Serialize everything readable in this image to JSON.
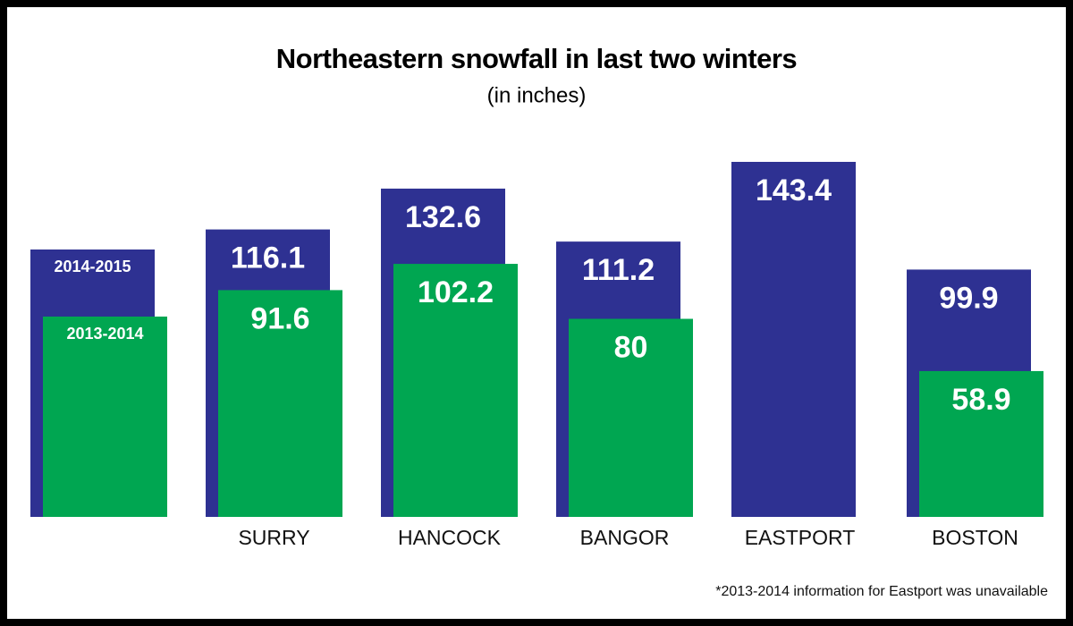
{
  "chart_data": {
    "type": "bar",
    "title": "Northeastern snowfall in last two winters",
    "subtitle": "(in inches)",
    "categories": [
      "SURRY",
      "HANCOCK",
      "BANGOR",
      "EASTPORT",
      "BOSTON"
    ],
    "series": [
      {
        "name": "2014-2015",
        "color": "#2e3192",
        "values": [
          116.1,
          132.6,
          111.2,
          143.4,
          99.9
        ]
      },
      {
        "name": "2013-2014",
        "color": "#00a651",
        "values": [
          91.6,
          102.2,
          80,
          null,
          58.9
        ]
      }
    ],
    "note": "*2013-2014 information for Eastport was unavailable"
  }
}
